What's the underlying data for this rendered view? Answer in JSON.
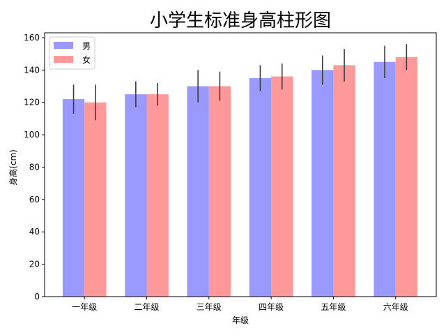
{
  "chart_data": {
    "type": "bar",
    "title": "小学生标准身高柱形图",
    "xlabel": "年级",
    "ylabel": "身高(cm)",
    "categories": [
      "一年级",
      "二年级",
      "三年级",
      "四年级",
      "五年级",
      "六年级"
    ],
    "ylim": [
      0,
      163
    ],
    "yticks": [
      0,
      20,
      40,
      60,
      80,
      100,
      120,
      140,
      160
    ],
    "grid": false,
    "legend_position": "top-left",
    "series": [
      {
        "name": "男",
        "color": "#9999ff",
        "values": [
          122,
          125,
          130,
          135,
          140,
          145
        ],
        "errors": [
          9,
          8,
          10,
          8,
          9,
          10
        ]
      },
      {
        "name": "女",
        "color": "#ff9999",
        "values": [
          120,
          125,
          130,
          136,
          143,
          148
        ],
        "errors": [
          11,
          7,
          9,
          8,
          10,
          8
        ]
      }
    ]
  }
}
